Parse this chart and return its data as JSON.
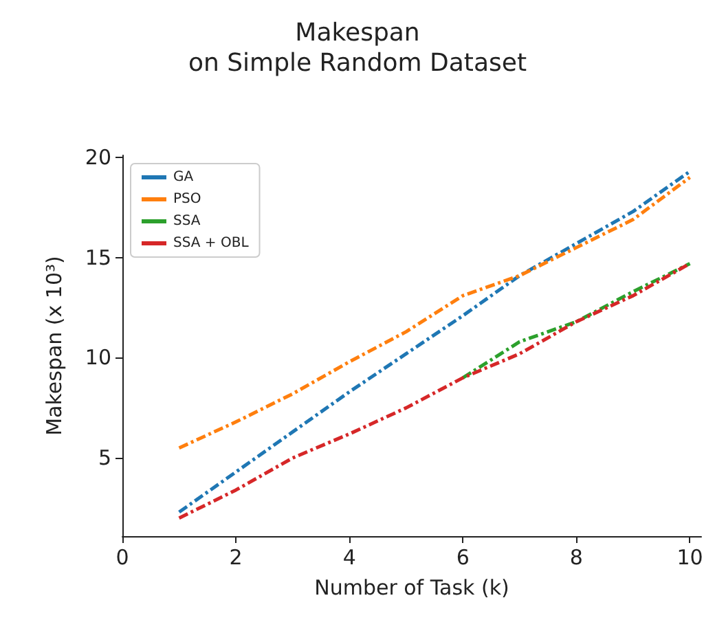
{
  "chart_data": {
    "type": "line",
    "title": "Makespan\non Simple Random Dataset",
    "xlabel": "Number of Task (k)",
    "ylabel": "Makespan (x 10³)",
    "x": [
      1,
      2,
      3,
      4,
      5,
      6,
      7,
      8,
      9,
      10
    ],
    "series": [
      {
        "name": "GA",
        "color": "#1f77b4",
        "values": [
          2.3,
          4.3,
          6.3,
          8.3,
          10.2,
          12.1,
          14.1,
          15.7,
          17.3,
          19.3
        ]
      },
      {
        "name": "PSO",
        "color": "#ff7f0e",
        "values": [
          5.5,
          6.8,
          8.2,
          9.8,
          11.3,
          13.1,
          14.1,
          15.5,
          16.9,
          19.0
        ]
      },
      {
        "name": "SSA",
        "color": "#2ca02c",
        "values": [
          null,
          null,
          null,
          null,
          null,
          9.0,
          10.8,
          11.8,
          13.3,
          14.7
        ]
      },
      {
        "name": "SSA + OBL",
        "color": "#d62728",
        "values": [
          2.0,
          3.4,
          5.0,
          6.2,
          7.5,
          9.0,
          10.2,
          11.8,
          13.1,
          14.7
        ]
      }
    ],
    "xlim": [
      0,
      10.2
    ],
    "xticks": [
      0,
      2,
      4,
      6,
      8,
      10
    ],
    "ylim": [
      1.1,
      20.1
    ],
    "yticks": [
      5,
      10,
      15,
      20
    ],
    "grid": false,
    "legend": "top left",
    "marker": "none",
    "line_style": "dashed"
  }
}
